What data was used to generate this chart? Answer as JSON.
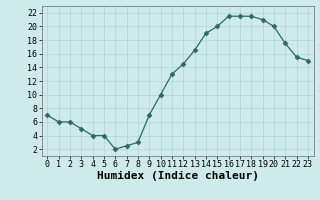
{
  "x": [
    0,
    1,
    2,
    3,
    4,
    5,
    6,
    7,
    8,
    9,
    10,
    11,
    12,
    13,
    14,
    15,
    16,
    17,
    18,
    19,
    20,
    21,
    22,
    23
  ],
  "y": [
    7,
    6,
    6,
    5,
    4,
    4,
    2,
    2.5,
    3,
    7,
    10,
    13,
    14.5,
    16.5,
    19,
    20,
    21.5,
    21.5,
    21.5,
    21,
    20,
    17.5,
    15.5,
    15
  ],
  "line_color": "#2e6b5e",
  "marker": "D",
  "marker_size": 2.5,
  "background_color": "#ceeaea",
  "grid_color": "#b8d8d8",
  "xlabel": "Humidex (Indice chaleur)",
  "ylim": [
    1,
    23
  ],
  "xlim": [
    -0.5,
    23.5
  ],
  "yticks": [
    2,
    4,
    6,
    8,
    10,
    12,
    14,
    16,
    18,
    20,
    22
  ],
  "xticks": [
    0,
    1,
    2,
    3,
    4,
    5,
    6,
    7,
    8,
    9,
    10,
    11,
    12,
    13,
    14,
    15,
    16,
    17,
    18,
    19,
    20,
    21,
    22,
    23
  ],
  "tick_label_fontsize": 6,
  "xlabel_fontsize": 8
}
